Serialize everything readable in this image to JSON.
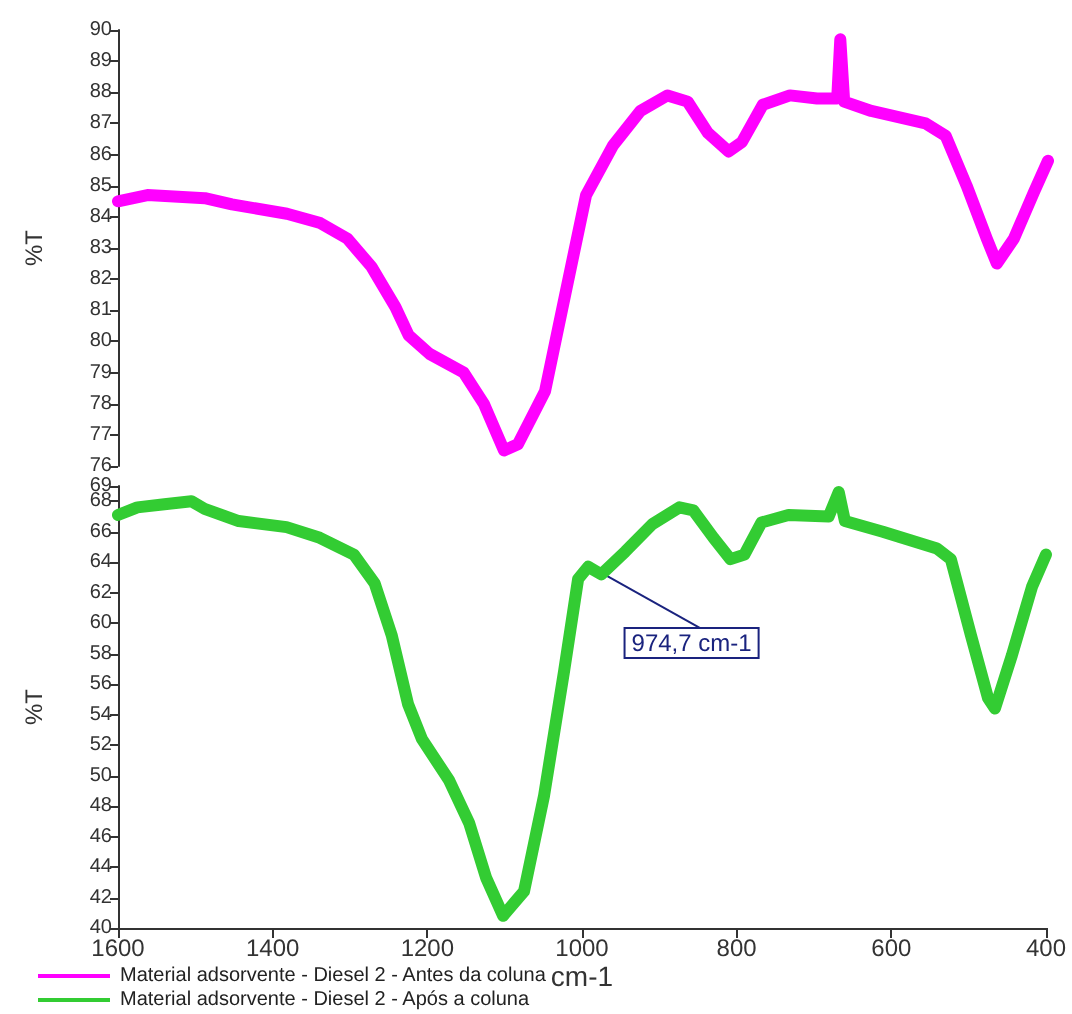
{
  "chart_data": [
    {
      "type": "line",
      "ylabel": "%T",
      "xlim": [
        1600,
        400
      ],
      "xticks": [
        1600,
        1400,
        1200,
        1000,
        800,
        600,
        400
      ],
      "ylim": [
        76,
        90
      ],
      "yticks": [
        76,
        77,
        78,
        79,
        80,
        81,
        82,
        83,
        84,
        85,
        86,
        87,
        88,
        89,
        90
      ],
      "tick_labels": "y",
      "legend": "bottom left",
      "grid": false,
      "marker": "none",
      "line_style": "solid",
      "series": [
        {
          "name": "Material adsorvente - Diesel 2 - Antes da coluna",
          "color": "#ff00ff",
          "x": [
            1600,
            1562,
            1488,
            1453,
            1382,
            1339,
            1304,
            1273,
            1242,
            1225,
            1198,
            1154,
            1128,
            1102,
            1084,
            1049,
            1023,
            996,
            961,
            926,
            891,
            865,
            839,
            812,
            795,
            768,
            733,
            698,
            672,
            668,
            663,
            628,
            558,
            532,
            505,
            479,
            466,
            444,
            418,
            400
          ],
          "values": [
            84.5,
            84.7,
            84.6,
            84.4,
            84.1,
            83.8,
            83.3,
            82.4,
            81.1,
            80.2,
            79.6,
            79.0,
            78.0,
            76.5,
            76.7,
            78.4,
            81.5,
            84.7,
            86.3,
            87.4,
            87.9,
            87.7,
            86.7,
            86.1,
            86.4,
            87.6,
            87.9,
            87.8,
            87.8,
            89.7,
            87.7,
            87.4,
            87.0,
            86.6,
            85.0,
            83.3,
            82.5,
            83.3,
            84.8,
            85.8
          ]
        }
      ]
    },
    {
      "type": "line",
      "ylabel": "%T",
      "xlabel": "cm-1",
      "xlim": [
        1600,
        400
      ],
      "xticks": [
        1600,
        1400,
        1200,
        1000,
        800,
        600,
        400
      ],
      "ylim": [
        40,
        69
      ],
      "yticks": [
        40,
        42,
        44,
        46,
        48,
        50,
        52,
        54,
        56,
        58,
        60,
        62,
        64,
        66,
        68,
        69
      ],
      "legend": "bottom left",
      "grid": false,
      "marker": "none",
      "line_style": "solid",
      "annotations": [
        {
          "text": "974,7 cm-1",
          "x": 974.7,
          "y": 63.3
        }
      ],
      "series": [
        {
          "name": "Material adsorvente - Diesel 2 - Após a coluna",
          "color": "#33cc33",
          "x": [
            1600,
            1575,
            1540,
            1505,
            1488,
            1444,
            1382,
            1339,
            1295,
            1268,
            1246,
            1225,
            1207,
            1172,
            1146,
            1124,
            1102,
            1075,
            1049,
            1023,
            1005,
            992,
            975,
            944,
            909,
            874,
            856,
            830,
            808,
            790,
            768,
            733,
            681,
            668,
            660,
            611,
            541,
            523,
            497,
            475,
            466,
            444,
            418,
            400
          ],
          "values": [
            67.1,
            67.6,
            67.8,
            68.0,
            67.5,
            66.7,
            66.3,
            65.6,
            64.5,
            62.6,
            59.2,
            54.7,
            52.4,
            49.7,
            46.9,
            43.3,
            40.8,
            42.4,
            48.7,
            56.9,
            62.9,
            63.7,
            63.2,
            64.7,
            66.5,
            67.6,
            67.4,
            65.6,
            64.2,
            64.5,
            66.6,
            67.1,
            67.0,
            68.6,
            66.7,
            66.0,
            64.9,
            64.2,
            59.2,
            55.1,
            54.4,
            57.9,
            62.4,
            64.5
          ]
        }
      ]
    }
  ]
}
